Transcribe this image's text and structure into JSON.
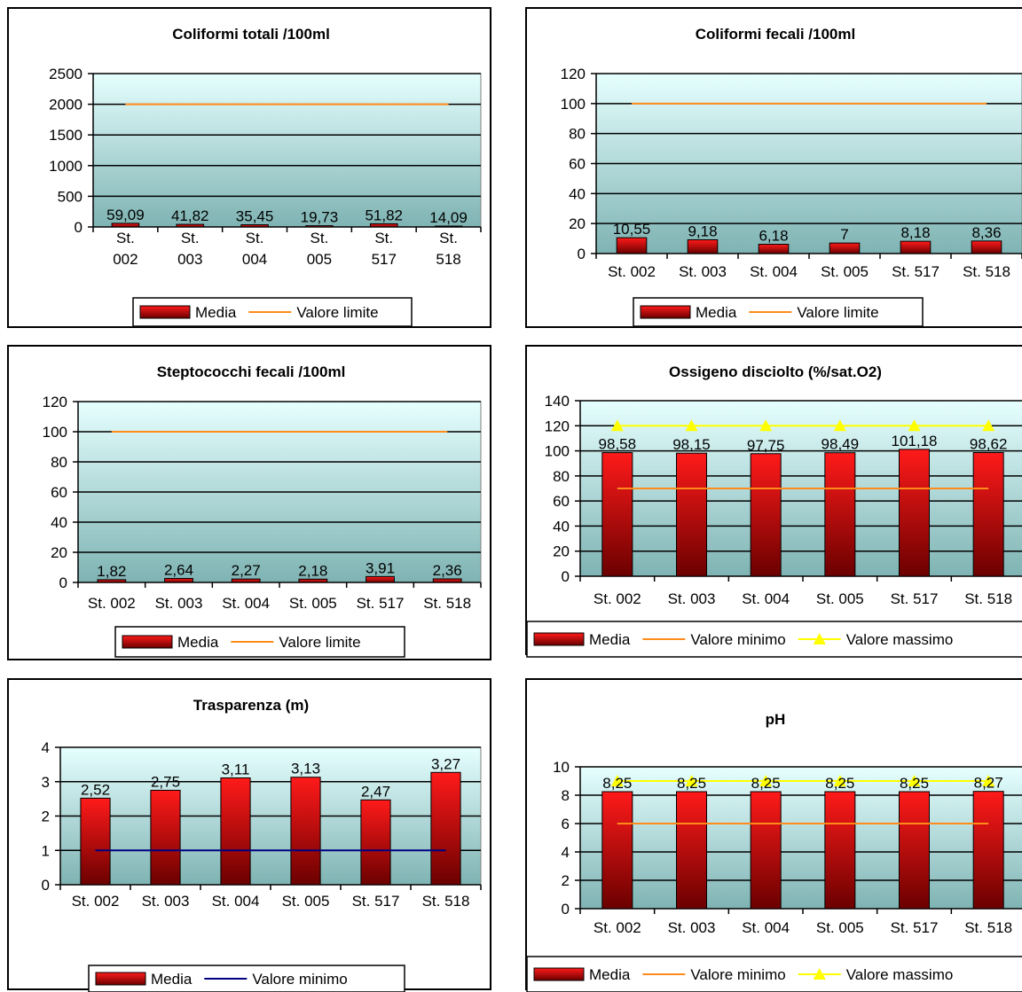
{
  "colors": {
    "bar_top": "#ff1a1a",
    "bar_bottom": "#6b0000",
    "limit_line": "#ff8c1a",
    "max_line": "#ffff00",
    "min_line_blue": "#000080",
    "plot_bg_top": "#e6ffff",
    "plot_bg_bottom": "#7fb3b3"
  },
  "chart_data": [
    {
      "id": "coliformi-totali",
      "type": "bar",
      "title": "Coliformi totali /100ml",
      "categories": [
        "St. 002",
        "St. 003",
        "St. 004",
        "St. 005",
        "St. 517",
        "St. 518"
      ],
      "category_labels_wrapped": true,
      "series": [
        {
          "name": "Media",
          "kind": "bar",
          "values": [
            59.09,
            41.82,
            35.45,
            19.73,
            51.82,
            14.09
          ],
          "labels": [
            "59,09",
            "41,82",
            "35,45",
            "19,73",
            "51,82",
            "14,09"
          ]
        },
        {
          "name": "Valore limite",
          "kind": "line",
          "color": "#ff8c1a",
          "values": [
            2000,
            2000,
            2000,
            2000,
            2000,
            2000
          ]
        }
      ],
      "ylim": [
        0,
        2500
      ],
      "yticks": [
        0,
        500,
        1000,
        1500,
        2000,
        2500
      ],
      "grid": true,
      "legend": "bottom"
    },
    {
      "id": "coliformi-fecali",
      "type": "bar",
      "title": "Coliformi fecali /100ml",
      "categories": [
        "St. 002",
        "St. 003",
        "St. 004",
        "St. 005",
        "St. 517",
        "St. 518"
      ],
      "series": [
        {
          "name": "Media",
          "kind": "bar",
          "values": [
            10.55,
            9.18,
            6.18,
            7,
            8.18,
            8.36
          ],
          "labels": [
            "10,55",
            "9,18",
            "6,18",
            "7",
            "8,18",
            "8,36"
          ]
        },
        {
          "name": "Valore limite",
          "kind": "line",
          "color": "#ff8c1a",
          "values": [
            100,
            100,
            100,
            100,
            100,
            100
          ]
        }
      ],
      "ylim": [
        0,
        120
      ],
      "yticks": [
        0,
        20,
        40,
        60,
        80,
        100,
        120
      ],
      "grid": true,
      "legend": "bottom"
    },
    {
      "id": "streptococchi-fecali",
      "type": "bar",
      "title": "Steptococchi fecali /100ml",
      "categories": [
        "St. 002",
        "St. 003",
        "St. 004",
        "St. 005",
        "St. 517",
        "St. 518"
      ],
      "series": [
        {
          "name": "Media",
          "kind": "bar",
          "values": [
            1.82,
            2.64,
            2.27,
            2.18,
            3.91,
            2.36
          ],
          "labels": [
            "1,82",
            "2,64",
            "2,27",
            "2,18",
            "3,91",
            "2,36"
          ]
        },
        {
          "name": "Valore limite",
          "kind": "line",
          "color": "#ff8c1a",
          "values": [
            100,
            100,
            100,
            100,
            100,
            100
          ]
        }
      ],
      "ylim": [
        0,
        120
      ],
      "yticks": [
        0,
        20,
        40,
        60,
        80,
        100,
        120
      ],
      "grid": true,
      "legend": "bottom"
    },
    {
      "id": "ossigeno-disciolto",
      "type": "bar",
      "title": "Ossigeno disciolto (%/sat.O2)",
      "categories": [
        "St. 002",
        "St. 003",
        "St. 004",
        "St. 005",
        "St. 517",
        "St. 518"
      ],
      "series": [
        {
          "name": "Media",
          "kind": "bar",
          "values": [
            98.58,
            98.15,
            97.75,
            98.49,
            101.18,
            98.62
          ],
          "labels": [
            "98,58",
            "98,15",
            "97,75",
            "98,49",
            "101,18",
            "98,62"
          ]
        },
        {
          "name": "Valore minimo",
          "kind": "line",
          "color": "#ff8c1a",
          "values": [
            70,
            70,
            70,
            70,
            70,
            70
          ]
        },
        {
          "name": "Valore massimo",
          "kind": "line-triangle",
          "color": "#ffff00",
          "values": [
            120,
            120,
            120,
            120,
            120,
            120
          ]
        }
      ],
      "ylim": [
        0,
        140
      ],
      "yticks": [
        0,
        20,
        40,
        60,
        80,
        100,
        120,
        140
      ],
      "grid": true,
      "legend": "bottom"
    },
    {
      "id": "trasparenza",
      "type": "bar",
      "title": "Trasparenza (m)",
      "categories": [
        "St. 002",
        "St. 003",
        "St. 004",
        "St. 005",
        "St. 517",
        "St. 518"
      ],
      "series": [
        {
          "name": "Media",
          "kind": "bar",
          "values": [
            2.52,
            2.75,
            3.11,
            3.13,
            2.47,
            3.27
          ],
          "labels": [
            "2,52",
            "2,75",
            "3,11",
            "3,13",
            "2,47",
            "3,27"
          ]
        },
        {
          "name": "Valore minimo",
          "kind": "line",
          "color": "#000080",
          "values": [
            1,
            1,
            1,
            1,
            1,
            1
          ]
        }
      ],
      "ylim": [
        0,
        4
      ],
      "yticks": [
        0,
        1,
        2,
        3,
        4
      ],
      "grid": true,
      "legend": "bottom"
    },
    {
      "id": "ph",
      "type": "bar",
      "title": "pH",
      "categories": [
        "St. 002",
        "St. 003",
        "St. 004",
        "St. 005",
        "St. 517",
        "St. 518"
      ],
      "series": [
        {
          "name": "Media",
          "kind": "bar",
          "values": [
            8.25,
            8.25,
            8.25,
            8.25,
            8.25,
            8.27
          ],
          "labels": [
            "8,25",
            "8,25",
            "8,25",
            "8,25",
            "8,25",
            "8,27"
          ]
        },
        {
          "name": "Valore minimo",
          "kind": "line",
          "color": "#ff8c1a",
          "values": [
            6,
            6,
            6,
            6,
            6,
            6
          ]
        },
        {
          "name": "Valore massimo",
          "kind": "line-triangle",
          "color": "#ffff00",
          "values": [
            9,
            9,
            9,
            9,
            9,
            9
          ]
        }
      ],
      "ylim": [
        0,
        10
      ],
      "yticks": [
        0,
        2,
        4,
        6,
        8,
        10
      ],
      "grid": true,
      "legend": "bottom"
    }
  ]
}
